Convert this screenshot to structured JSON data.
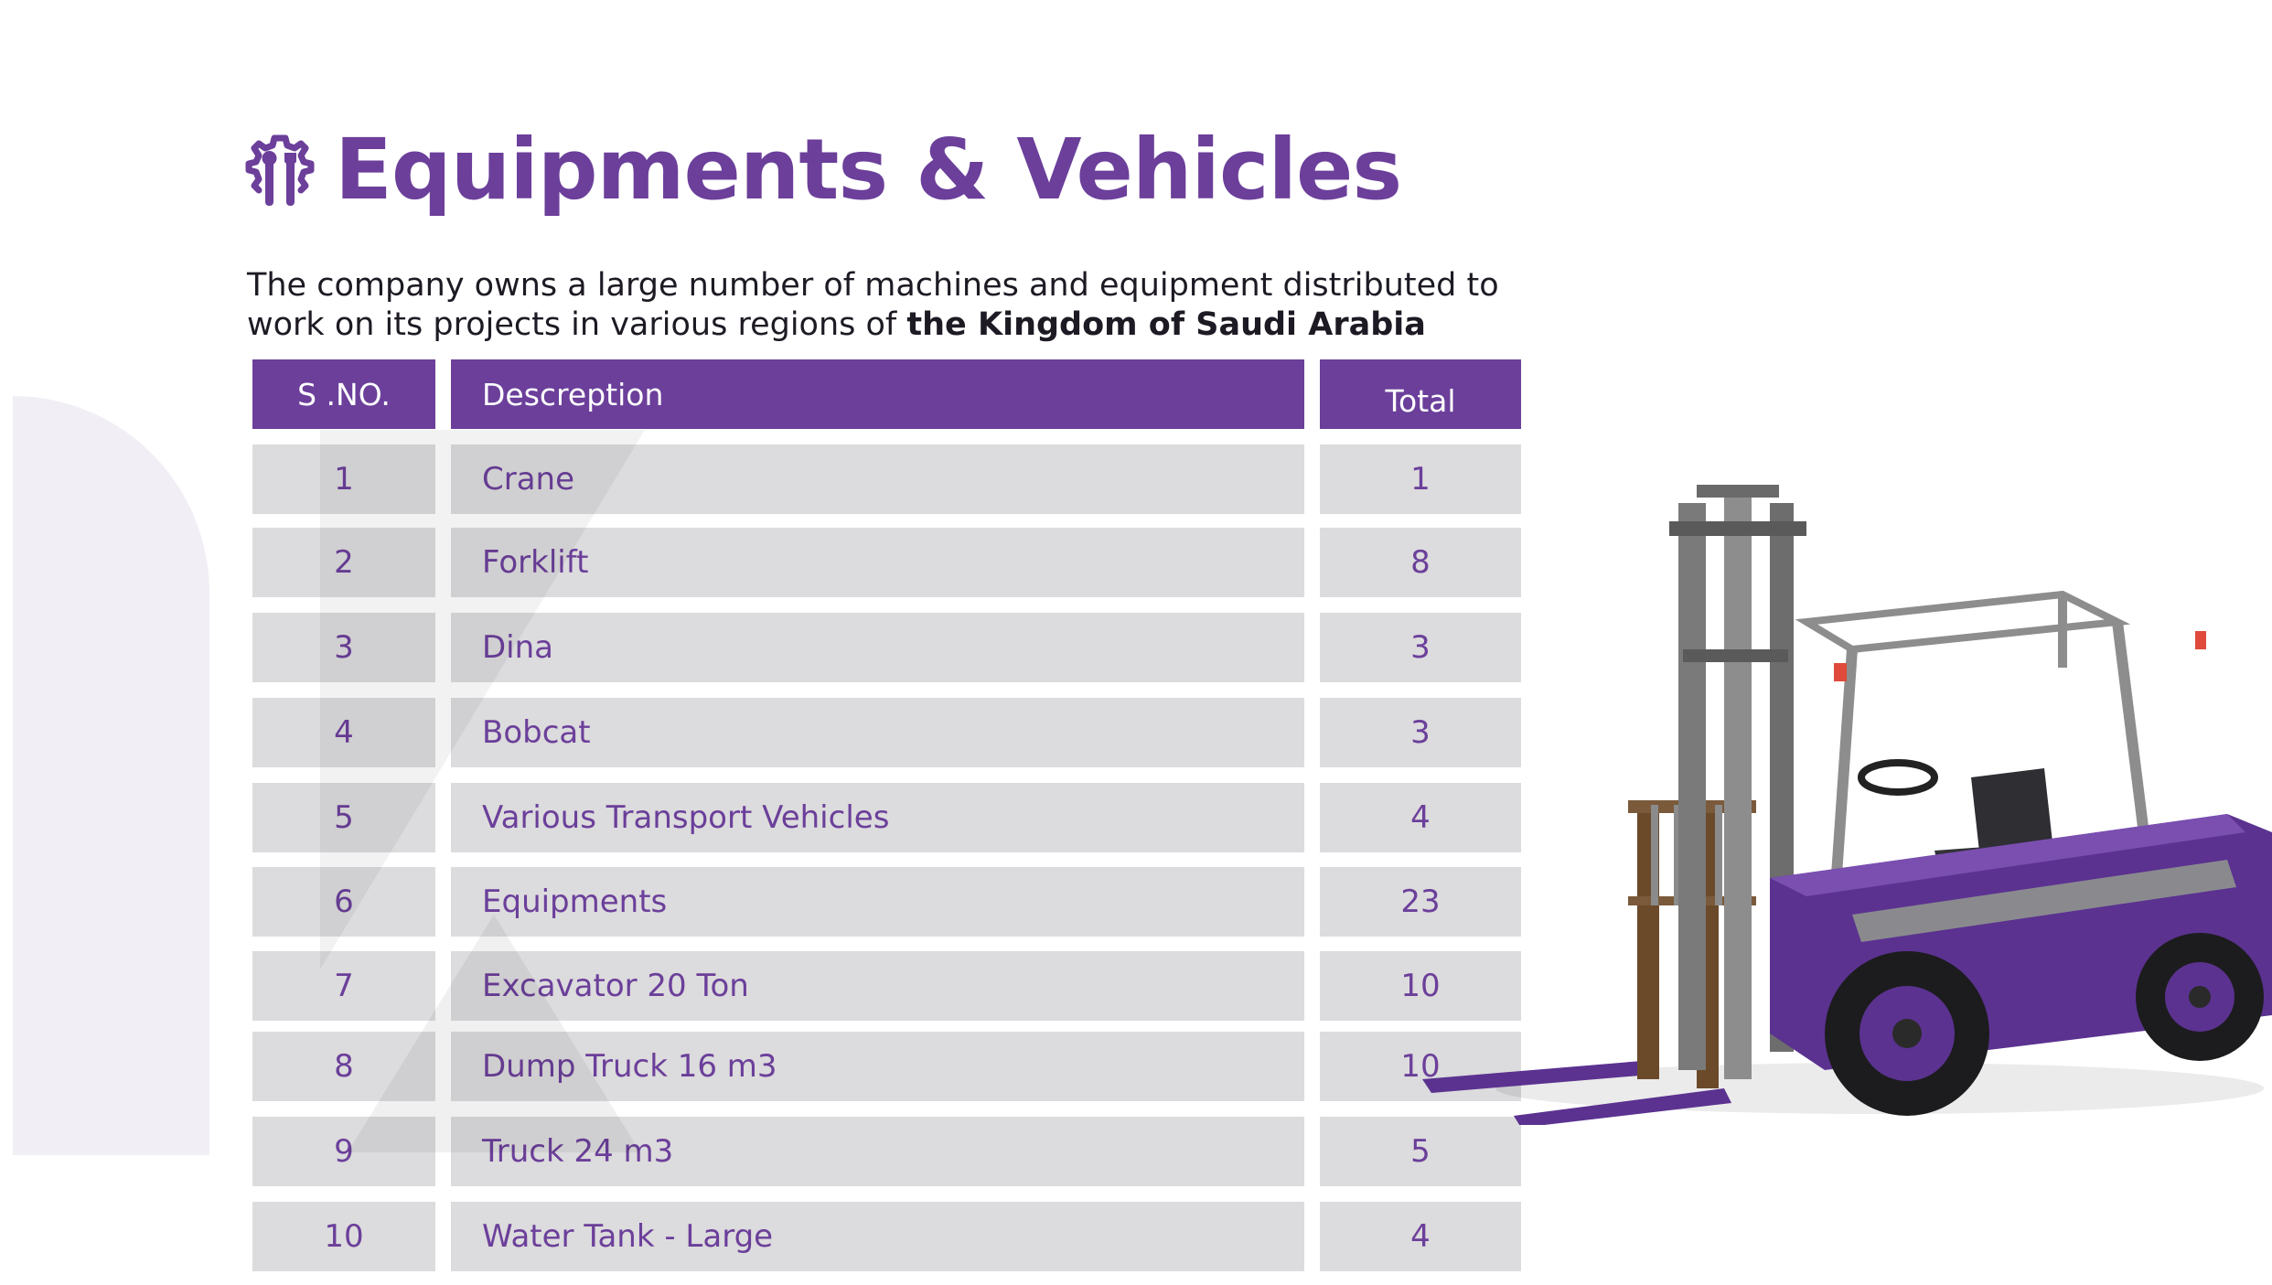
{
  "title": "Equipments & Vehicles",
  "intro": {
    "text_regular": "The company owns a large number of machines and equipment distributed to work on its projects in various regions of",
    "text_bold": "the Kingdom of Saudi Arabia"
  },
  "table": {
    "headers": {
      "sno": "S .NO.",
      "description": "Descreption",
      "total": "Total"
    },
    "rows": [
      {
        "sno": "1",
        "description": "Crane",
        "total": "1"
      },
      {
        "sno": "2",
        "description": "Forklift",
        "total": "8"
      },
      {
        "sno": "3",
        "description": "Dina",
        "total": "3"
      },
      {
        "sno": "4",
        "description": "Bobcat",
        "total": "3"
      },
      {
        "sno": "5",
        "description": "Various Transport Vehicles",
        "total": "4"
      },
      {
        "sno": "6",
        "description": "Equipments",
        "total": "23"
      },
      {
        "sno": "7",
        "description": "Excavator 20 Ton",
        "total": "10"
      },
      {
        "sno": "8",
        "description": "Dump Truck 16 m3",
        "total": "10"
      },
      {
        "sno": "9",
        "description": "Truck 24 m3",
        "total": "5"
      },
      {
        "sno": "10",
        "description": "Water Tank - Large",
        "total": "4"
      }
    ]
  },
  "icons": {
    "title_icon": "gear-tools-icon",
    "illustration": "forklift-image"
  },
  "colors": {
    "brand_purple": "#6b3f9a",
    "row_gray": "#dcdbdd",
    "background_shape": "#f1eff5"
  }
}
